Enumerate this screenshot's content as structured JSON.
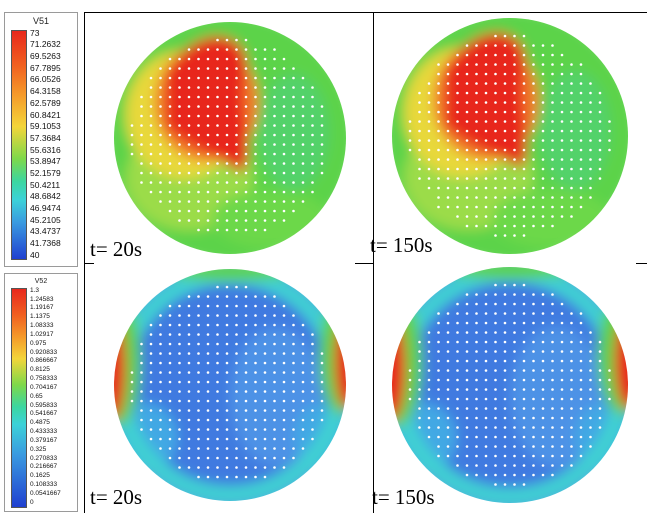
{
  "legends": [
    {
      "title": "V51",
      "labels": [
        "73",
        "71.2632",
        "69.5263",
        "67.7895",
        "66.0526",
        "64.3158",
        "62.5789",
        "60.8421",
        "59.1053",
        "57.3684",
        "55.6316",
        "53.8947",
        "52.1579",
        "50.4211",
        "48.6842",
        "46.9474",
        "45.2105",
        "43.4737",
        "41.7368",
        "40"
      ]
    },
    {
      "title": "V52",
      "labels": [
        "1.3",
        "1.24583",
        "1.19167",
        "1.1375",
        "1.08333",
        "1.02917",
        "0.975",
        "0.920833",
        "0.866667",
        "0.8125",
        "0.758333",
        "0.704167",
        "0.65",
        "0.595833",
        "0.541667",
        "0.4875",
        "0.433333",
        "0.379167",
        "0.325",
        "0.270833",
        "0.216667",
        "0.1625",
        "0.108333",
        "0.0541667",
        "0"
      ]
    }
  ],
  "panels": [
    {
      "time_label": "t= 20s",
      "field": "V51"
    },
    {
      "time_label": "t= 150s",
      "field": "V51"
    },
    {
      "time_label": "t= 20s",
      "field": "V52"
    },
    {
      "time_label": "t= 150s",
      "field": "V52"
    }
  ],
  "colors": {
    "red": "#e8281c",
    "orange": "#f07a2a",
    "yellow": "#e8d83a",
    "green": "#5cd34a",
    "cyan": "#3fd2d2",
    "blue": "#3f7ae0",
    "dark_blue": "#1a3ec8",
    "dots": "#ffffff"
  }
}
